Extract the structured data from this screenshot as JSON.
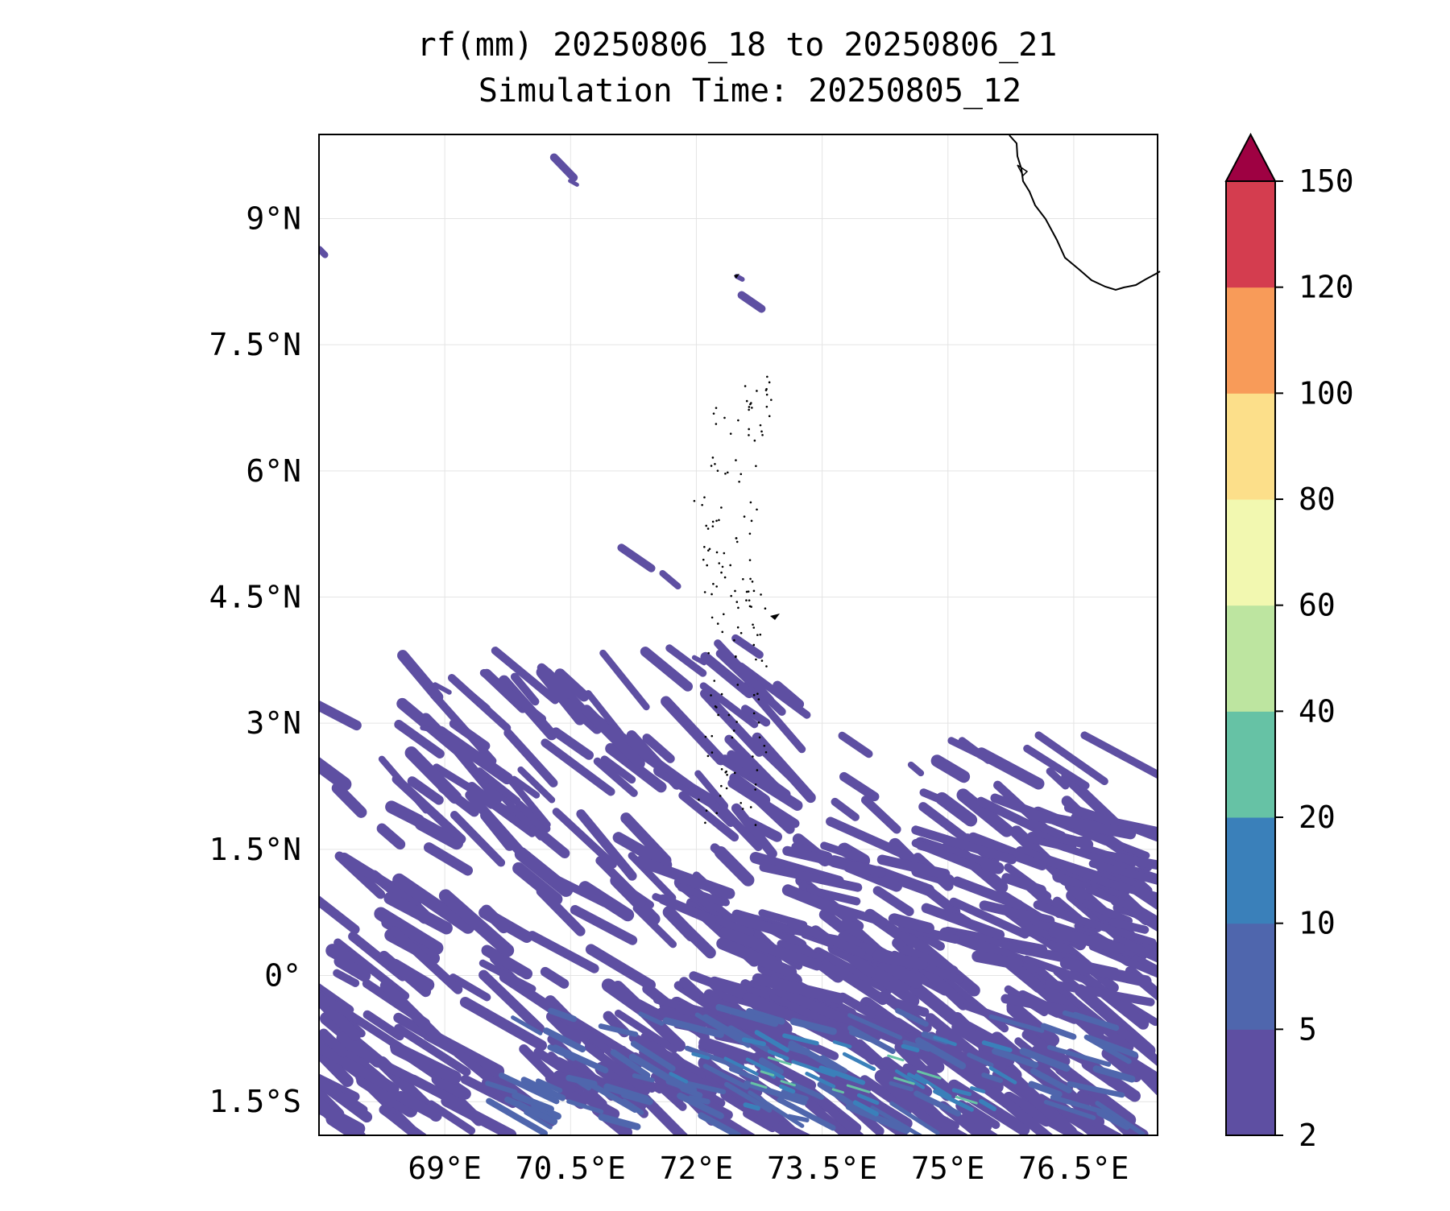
{
  "title": {
    "line1": "rf(mm) 20250806_18 to 20250806_21",
    "line2": "Simulation Time: 20250805_12"
  },
  "map": {
    "lat_range": [
      -1.9,
      10.0
    ],
    "lon_range": [
      67.5,
      77.5
    ],
    "gridlines": true,
    "lat_ticks": [
      {
        "value": 9,
        "label": "9°N"
      },
      {
        "value": 7.5,
        "label": "7.5°N"
      },
      {
        "value": 6,
        "label": "6°N"
      },
      {
        "value": 4.5,
        "label": "4.5°N"
      },
      {
        "value": 3,
        "label": "3°N"
      },
      {
        "value": 1.5,
        "label": "1.5°N"
      },
      {
        "value": 0,
        "label": "0°"
      },
      {
        "value": -1.5,
        "label": "1.5°S"
      }
    ],
    "lon_ticks": [
      {
        "value": 69,
        "label": "69°E"
      },
      {
        "value": 70.5,
        "label": "70.5°E"
      },
      {
        "value": 72,
        "label": "72°E"
      },
      {
        "value": 73.5,
        "label": "73.5°E"
      },
      {
        "value": 75,
        "label": "75°E"
      },
      {
        "value": 76.5,
        "label": "76.5°E"
      }
    ],
    "field_color": "#5e4fa2"
  },
  "colorbar": {
    "levels": [
      "2",
      "5",
      "10",
      "20",
      "40",
      "60",
      "80",
      "100",
      "120",
      "150"
    ],
    "colors": [
      "#5e4fa2",
      "#4f66ad",
      "#3a80ba",
      "#66c2a5",
      "#bde5a0",
      "#f2f8b0",
      "#fcdf8a",
      "#f89b59",
      "#d43d4f"
    ],
    "extend_color": "#9e0142"
  }
}
